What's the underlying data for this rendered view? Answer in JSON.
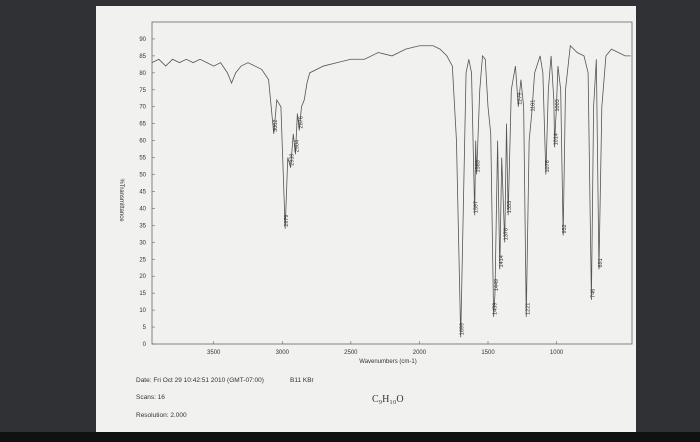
{
  "chart_data": {
    "type": "line",
    "x_label": "Wavenumbers (cm-1)",
    "y_label": "%Transmittance",
    "xlim": [
      3950,
      450
    ],
    "ylim": [
      0,
      95
    ],
    "xticks": [
      3500,
      3000,
      2500,
      2000,
      1500,
      1000
    ],
    "yticks": [
      0,
      5,
      10,
      15,
      20,
      25,
      30,
      35,
      40,
      45,
      50,
      55,
      60,
      65,
      70,
      75,
      80,
      85,
      90
    ],
    "x_reversed": true,
    "series": [
      {
        "color": "#555555",
        "x": [
          3950,
          3900,
          3850,
          3800,
          3750,
          3700,
          3650,
          3600,
          3550,
          3500,
          3450,
          3400,
          3370,
          3340,
          3300,
          3250,
          3200,
          3150,
          3100,
          3062,
          3040,
          3010,
          2979,
          2960,
          2939,
          2920,
          2904,
          2890,
          2876,
          2860,
          2840,
          2820,
          2800,
          2700,
          2600,
          2500,
          2400,
          2300,
          2200,
          2100,
          2000,
          1900,
          1850,
          1800,
          1760,
          1730,
          1699,
          1680,
          1660,
          1640,
          1620,
          1597,
          1590,
          1583,
          1560,
          1540,
          1520,
          1500,
          1480,
          1459,
          1449,
          1430,
          1414,
          1400,
          1378,
          1365,
          1353,
          1330,
          1300,
          1279,
          1260,
          1240,
          1221,
          1200,
          1181,
          1160,
          1120,
          1100,
          1078,
          1060,
          1040,
          1020,
          1014,
          1008,
          1003,
          990,
          970,
          952,
          935,
          900,
          850,
          800,
          770,
          746,
          730,
          710,
          691,
          670,
          640,
          600,
          550,
          500,
          460
        ],
        "values": [
          83,
          84,
          82,
          84,
          83,
          84,
          83,
          84,
          83,
          82,
          83,
          80,
          77,
          80,
          82,
          83,
          82,
          81,
          78,
          62,
          72,
          70,
          34,
          55,
          52,
          62,
          56,
          68,
          63,
          70,
          72,
          77,
          80,
          82,
          83,
          84,
          84,
          86,
          85,
          87,
          88,
          88,
          87,
          85,
          82,
          60,
          2,
          40,
          80,
          84,
          80,
          38,
          60,
          50,
          75,
          85,
          84,
          70,
          62,
          8,
          15,
          60,
          22,
          55,
          30,
          65,
          38,
          75,
          82,
          70,
          78,
          70,
          8,
          60,
          68,
          80,
          85,
          80,
          50,
          75,
          85,
          72,
          58,
          65,
          68,
          82,
          75,
          32,
          75,
          88,
          86,
          85,
          80,
          13,
          70,
          84,
          22,
          70,
          85,
          87,
          86,
          85,
          85
        ]
      }
    ],
    "peak_labels": [
      3062,
      2979,
      2939,
      2904,
      2876,
      1699,
      1597,
      1583,
      1459,
      1449,
      1414,
      1378,
      1353,
      1279,
      1221,
      1181,
      1078,
      1014,
      1003,
      952,
      746,
      691
    ],
    "date": "Date: Fri Oct 29 10:42:51 2010 (GMT-07:00)",
    "sample": "B11 KBr",
    "scans": "Scans: 16",
    "resolution": "Resolution: 2.000",
    "formula": "C₉H₁₀O"
  }
}
